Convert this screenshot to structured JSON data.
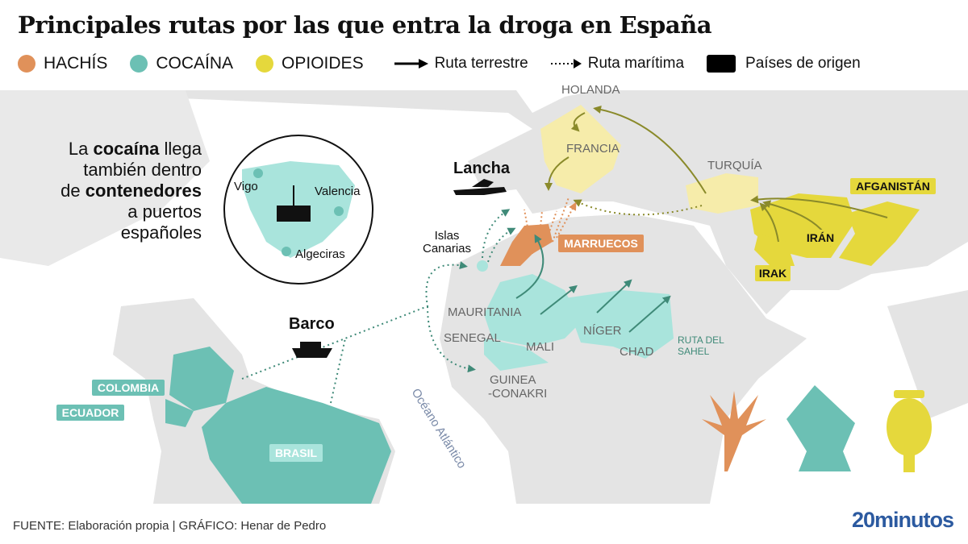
{
  "title": "Principales rutas por las que entra la droga en España",
  "legend": {
    "hachis": {
      "label": "HACHÍS",
      "color": "#e0915a"
    },
    "cocaina": {
      "label": "COCAÍNA",
      "color": "#6cc0b4"
    },
    "opioides": {
      "label": "OPIOIDES",
      "color": "#e5d83c"
    },
    "terrestre": "Ruta terrestre",
    "maritima": "Ruta marítima",
    "origen": "Países de origen"
  },
  "inset": {
    "text_1": "La ",
    "text_bold_1": "cocaína",
    "text_2": " llega",
    "text_3": "también dentro",
    "text_4": "de ",
    "text_bold_2": "contenedores",
    "text_5": "a puertos",
    "text_6": "españoles",
    "ports": [
      "Vigo",
      "Valencia",
      "Algeciras"
    ]
  },
  "labels": {
    "holanda": "HOLANDA",
    "francia": "FRANCIA",
    "turquia": "TURQUÍA",
    "afganistan": "AFGANISTÁN",
    "iran": "IRÁN",
    "irak": "IRAK",
    "marruecos": "MARRUECOS",
    "lancha": "Lancha",
    "barco": "Barco",
    "islas_1": "Islas",
    "islas_2": "Canarias",
    "mauritania": "MAURITANIA",
    "senegal": "SENEGAL",
    "mali": "MALI",
    "niger": "NÍGER",
    "chad": "CHAD",
    "sahel_1": "RUTA DEL",
    "sahel_2": "SAHEL",
    "guinea_1": "GUINEA",
    "guinea_2": "-CONAKRI",
    "colombia": "COLOMBIA",
    "ecuador": "ECUADOR",
    "brasil": "BRASIL",
    "oceano": "Océano Atlántico"
  },
  "colors": {
    "land": "#e4e4e4",
    "hachis_dark": "#e0915a",
    "coca_light": "#a9e4dc",
    "coca_dark": "#6cc0b4",
    "opio_light": "#f6ecaa",
    "opio_dark": "#e5d83c",
    "route_opio": "#8a8a2a",
    "route_coca": "#3f8a78"
  },
  "footer": "FUENTE: Elaboración propia  |  GRÁFICO: Henar de Pedro",
  "brand": "20minutos"
}
